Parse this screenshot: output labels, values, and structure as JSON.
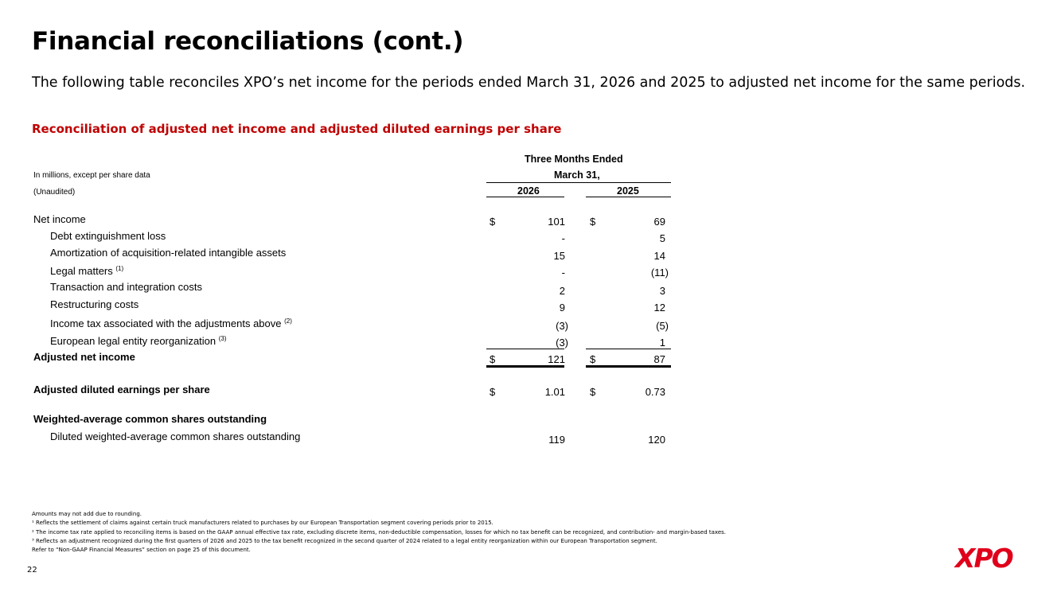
{
  "title": "Financial reconciliations (cont.)",
  "intro": "The following table reconciles XPO’s net income for the periods ended March 31, 2026 and 2025 to adjusted net income for the same periods.",
  "subtitle": "Reconciliation of adjusted net income and adjusted diluted earnings per share",
  "table": {
    "units_note": "In millions, except per share data",
    "unaudited": "(Unaudited)",
    "period_header": "Three Months Ended",
    "period_date": "March 31,",
    "col_2026": "2026",
    "col_2025": "2025",
    "currency": "$",
    "rows": [
      {
        "label": "Net income",
        "v2026": "101",
        "v2025": "69"
      },
      {
        "label": "Debt extinguishment loss",
        "v2026": "-",
        "v2025": "5"
      },
      {
        "label": "Amortization of acquisition-related intangible assets",
        "v2026": "15",
        "v2025": "14"
      },
      {
        "label": "Legal matters",
        "sup": "(1)",
        "v2026": "-",
        "v2025": "(11)"
      },
      {
        "label": "Transaction and integration costs",
        "v2026": "2",
        "v2025": "3"
      },
      {
        "label": "Restructuring costs",
        "v2026": "9",
        "v2025": "12"
      },
      {
        "label": "Income tax associated with the adjustments above",
        "sup": "(2)",
        "v2026": "(3)",
        "v2025": "(5)"
      },
      {
        "label": "European legal entity reorganization",
        "sup": "(3)",
        "v2026": "(3)",
        "v2025": "1"
      }
    ],
    "adjusted_net_income": {
      "label": "Adjusted net income",
      "v2026": "121",
      "v2025": "87"
    },
    "adjusted_eps": {
      "label": "Adjusted diluted earnings per share",
      "v2026": "1.01",
      "v2025": "0.73"
    },
    "shares_header": "Weighted-average common shares outstanding",
    "diluted_shares": {
      "label": "Diluted weighted-average common shares outstanding",
      "v2026": "119",
      "v2025": "120"
    }
  },
  "footnotes": [
    "Amounts may not add due to rounding.",
    "¹ Reflects the settlement of claims against certain truck manufacturers related to purchases by our European Transportation segment covering periods prior to 2015.",
    "² The income tax rate applied to reconciling items is based on the GAAP annual effective tax rate, excluding discrete items, non-deductible compensation, losses for which no tax benefit can be recognized, and contribution- and margin-based taxes.",
    "³ Reflects an adjustment recognized during the first quarters of 2026 and 2025 to the tax benefit recognized in the second quarter of 2024 related to a legal entity reorganization within our European Transportation segment.",
    "Refer to “Non-GAAP Financial Measures” section on page 25 of this document."
  ],
  "page_number": "22",
  "logo_text": "XPO",
  "colors": {
    "accent": "#c00000",
    "logo": "#e0001b"
  }
}
